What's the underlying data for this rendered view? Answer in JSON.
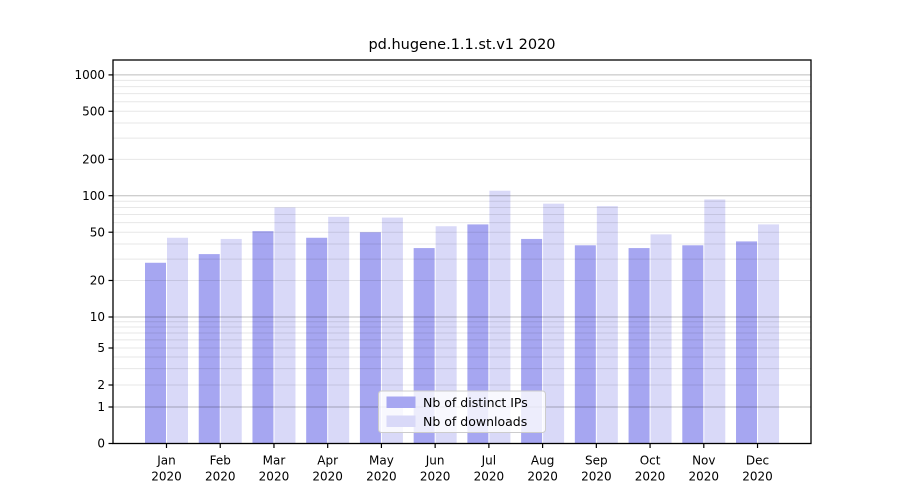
{
  "title": "pd.hugene.1.1.st.v1 2020",
  "chart_data": {
    "type": "bar",
    "title": "pd.hugene.1.1.st.v1 2020",
    "categories": [
      "Jan",
      "Feb",
      "Mar",
      "Apr",
      "May",
      "Jun",
      "Jul",
      "Aug",
      "Sep",
      "Oct",
      "Nov",
      "Dec"
    ],
    "category_year": "2020",
    "series": [
      {
        "name": "Nb of distinct IPs",
        "color": "#a6a6f1",
        "values": [
          28,
          33,
          51,
          45,
          50,
          37,
          58,
          44,
          39,
          37,
          39,
          42
        ]
      },
      {
        "name": "Nb of downloads",
        "color": "#d9d9f8",
        "values": [
          45,
          44,
          80,
          67,
          66,
          56,
          110,
          86,
          82,
          48,
          93,
          58
        ]
      }
    ],
    "yscale": "symlog",
    "y_ticks": [
      1000,
      500,
      200,
      100,
      50,
      20,
      10,
      5,
      2,
      1,
      0
    ],
    "ylim": [
      0,
      1300
    ],
    "grid": "major and log-minor horizontal gridlines",
    "legend": {
      "position": "lower center",
      "entries": [
        "Nb of distinct IPs",
        "Nb of downloads"
      ]
    }
  },
  "style": {
    "bar_dark": "#a6a6f1",
    "bar_light": "#d9d9f8",
    "grid_major": "rgba(0,0,0,0.26)",
    "grid_minor": "rgba(0,0,0,0.095)",
    "spine": "#000000",
    "text": "#000000",
    "legend_bg": "rgba(255,255,255,0.8)",
    "legend_border": "#cccccc"
  }
}
